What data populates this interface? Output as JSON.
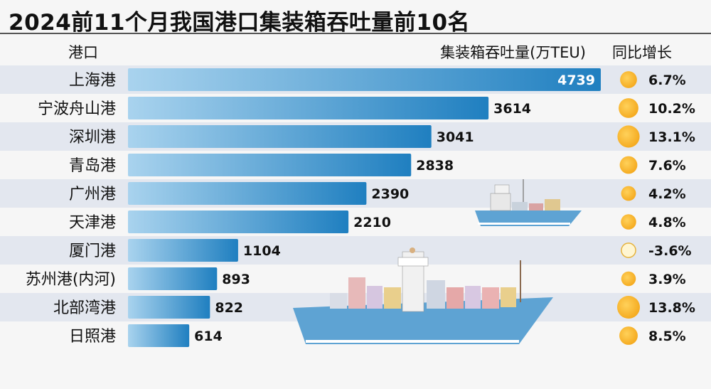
{
  "title": "2024前11个月我国港口集装箱吞吐量前10名",
  "headers": {
    "port": "港口",
    "volume": "集装箱吞吐量(万TEU)",
    "growth": "同比增长"
  },
  "colors": {
    "bar_start": "#a9d3ee",
    "bar_end": "#1f7fc0",
    "circle_positive": "#f4a81c",
    "circle_negative": "#fff6d2",
    "row_band": "#e3e7ef",
    "ship_hull": "#5ea3d3"
  },
  "chart_data": {
    "type": "bar",
    "orientation": "horizontal",
    "title": "2024前11个月我国港口集装箱吞吐量前10名",
    "xlabel": "集装箱吞吐量(万TEU)",
    "ylabel": "港口",
    "categories": [
      "上海港",
      "宁波舟山港",
      "深圳港",
      "青岛港",
      "广州港",
      "天津港",
      "厦门港",
      "苏州港(内河)",
      "北部湾港",
      "日照港"
    ],
    "values": [
      4739,
      3614,
      3041,
      2838,
      2390,
      2210,
      1104,
      893,
      822,
      614
    ],
    "value_labels": [
      "4739",
      "3614",
      "3041",
      "2838",
      "2390",
      "2210",
      "1104",
      "893",
      "822",
      "614"
    ],
    "growth_header": "同比增长",
    "growth": [
      6.7,
      10.2,
      13.1,
      7.6,
      4.2,
      4.8,
      -3.6,
      3.9,
      13.8,
      8.5
    ],
    "growth_labels": [
      "6.7%",
      "10.2%",
      "13.1%",
      "7.6%",
      "4.2%",
      "4.8%",
      "-3.6%",
      "3.9%",
      "13.8%",
      "8.5%"
    ],
    "xlim": [
      0,
      4739
    ],
    "grid": false,
    "legend": "none"
  }
}
